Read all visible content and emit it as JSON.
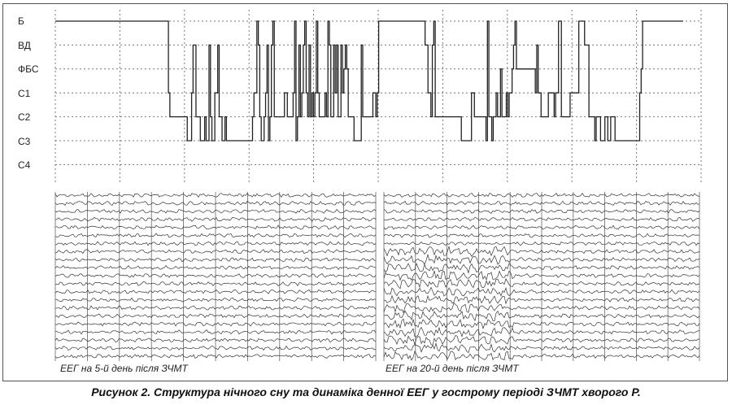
{
  "figure": {
    "caption": "Рисунок 2. Структура нічного сну та динаміка денної ЕЕГ у гострому періоді ЗЧМТ хворого Р.",
    "eeg_panels": [
      {
        "caption": "ЕЕГ на 5-й день після ЗЧМТ"
      },
      {
        "caption": "ЕЕГ на 20-й день після ЗЧМТ"
      }
    ]
  },
  "chart_data": {
    "type": "line",
    "title": "",
    "xlabel": "",
    "ylabel": "",
    "stages": [
      "Б",
      "ВД",
      "ФБС",
      "С1",
      "С2",
      "С3",
      "С4"
    ],
    "grid": true,
    "series": [
      {
        "values": [
          0,
          0,
          0,
          0,
          0,
          0,
          0,
          0,
          0,
          0,
          0,
          0,
          0,
          0,
          0,
          0,
          0,
          0,
          0,
          0,
          0,
          0,
          0,
          0,
          0,
          0,
          0,
          0,
          0,
          0,
          0,
          0,
          0,
          0,
          0,
          0,
          0,
          0,
          0,
          0,
          0,
          0,
          0,
          0,
          0,
          0,
          0,
          0,
          0,
          0,
          0,
          0,
          0,
          0,
          0,
          0,
          0,
          0,
          0,
          0,
          0,
          0,
          0,
          0,
          0,
          0,
          0,
          0,
          0,
          0,
          0,
          0,
          0,
          0,
          0,
          0,
          0,
          0,
          3,
          4,
          4,
          4,
          4,
          4,
          4,
          4,
          4,
          4,
          4,
          4,
          4,
          5,
          5,
          5,
          3,
          1,
          1,
          4,
          4,
          4,
          5,
          5,
          5,
          4,
          5,
          5,
          1,
          4,
          5,
          5,
          3,
          3,
          1,
          4,
          4,
          5,
          5,
          4,
          5,
          5,
          5,
          5,
          5,
          5,
          5,
          5,
          5,
          5,
          5,
          5,
          5,
          5,
          5,
          5,
          5,
          5,
          4,
          3,
          3,
          0,
          1,
          4,
          5,
          5,
          4,
          3,
          1,
          5,
          4,
          1,
          0,
          4,
          4,
          4,
          4,
          4,
          4,
          4,
          3,
          3,
          4,
          4,
          4,
          4,
          3,
          0,
          5,
          4,
          1,
          4,
          3,
          1,
          0,
          3,
          4,
          1,
          4,
          3,
          4,
          3,
          0,
          3,
          4,
          4,
          4,
          4,
          3,
          4,
          0,
          1,
          4,
          4,
          1,
          3,
          1,
          4,
          4,
          1,
          3,
          2,
          1,
          2,
          4,
          4,
          4,
          4,
          5,
          5,
          5,
          5,
          5,
          1,
          4,
          4,
          4,
          4,
          4,
          4,
          4,
          3,
          3,
          4,
          3,
          0,
          0,
          0,
          0,
          0,
          0,
          0,
          0,
          0,
          0,
          0,
          0,
          0,
          0,
          0,
          0,
          0,
          0,
          0,
          0,
          0,
          0,
          0,
          0,
          0,
          0,
          0,
          0,
          0,
          0,
          0,
          0,
          1,
          1,
          3,
          3,
          4,
          1,
          0,
          4,
          4,
          4,
          4,
          4,
          4,
          4,
          4,
          4,
          4,
          4,
          4,
          4,
          4,
          4,
          4,
          4,
          4,
          5,
          5,
          5,
          5,
          5,
          5,
          5,
          3,
          3,
          4,
          4,
          4,
          4,
          4,
          4,
          4,
          4,
          5,
          0,
          4,
          4,
          5,
          4,
          4,
          3,
          4,
          4,
          2,
          4,
          4,
          4,
          3,
          4,
          3,
          3,
          2,
          1,
          0,
          2,
          2,
          2,
          2,
          2,
          2,
          2,
          2,
          2,
          2,
          2,
          2,
          2,
          3,
          1,
          3,
          3,
          4,
          4,
          4,
          4,
          4,
          3,
          3,
          3,
          3,
          4,
          3,
          3,
          0,
          0,
          4,
          4,
          4,
          4,
          4,
          4,
          3,
          3,
          3,
          3,
          3,
          3,
          0,
          0,
          0,
          0,
          1,
          1,
          1,
          4,
          4,
          4,
          4,
          5,
          4,
          4,
          4,
          5,
          5,
          5,
          4,
          4,
          5,
          5,
          4,
          4,
          4,
          5,
          5,
          5,
          5,
          5,
          5,
          5,
          5,
          5,
          5,
          5,
          5,
          5,
          5,
          5,
          5,
          5,
          3,
          2,
          0,
          0,
          0,
          0,
          0,
          0,
          0,
          0,
          0,
          0,
          0,
          0,
          0,
          0,
          0,
          0,
          0,
          0,
          0,
          0,
          0,
          0,
          0,
          0,
          0,
          0,
          0,
          0
        ]
      }
    ]
  }
}
